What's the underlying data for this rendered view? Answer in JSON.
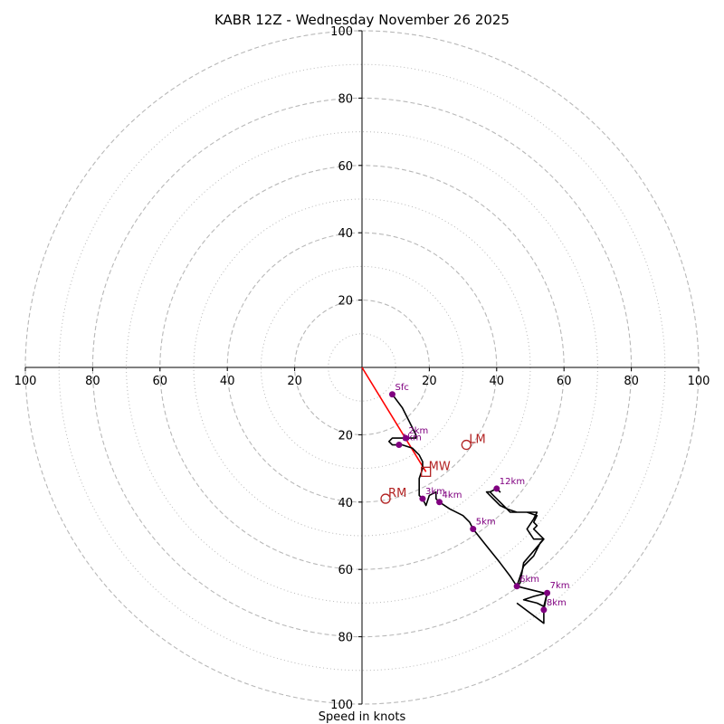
{
  "chart_data": {
    "type": "hodograph",
    "title": "KABR 12Z - Wednesday November 26 2025",
    "xlabel": "Speed in knots",
    "range": [
      -100,
      100
    ],
    "ring_major": [
      20,
      40,
      60,
      80,
      100
    ],
    "ring_minor": [
      10,
      30,
      50,
      70,
      90
    ],
    "x_ticks": [
      {
        "value": -100,
        "label": "100"
      },
      {
        "value": -80,
        "label": "80"
      },
      {
        "value": -60,
        "label": "60"
      },
      {
        "value": -40,
        "label": "40"
      },
      {
        "value": -20,
        "label": "20"
      },
      {
        "value": 20,
        "label": "20"
      },
      {
        "value": 40,
        "label": "40"
      },
      {
        "value": 60,
        "label": "60"
      },
      {
        "value": 80,
        "label": "80"
      },
      {
        "value": 100,
        "label": "100"
      }
    ],
    "y_ticks": [
      {
        "value": 100,
        "label": "100"
      },
      {
        "value": 80,
        "label": "80"
      },
      {
        "value": 60,
        "label": "60"
      },
      {
        "value": 40,
        "label": "40"
      },
      {
        "value": 20,
        "label": "20"
      },
      {
        "value": -20,
        "label": "20"
      },
      {
        "value": -40,
        "label": "40"
      },
      {
        "value": -60,
        "label": "60"
      },
      {
        "value": -80,
        "label": "80"
      },
      {
        "value": -100,
        "label": "100"
      }
    ],
    "trace": [
      [
        9,
        -8
      ],
      [
        12,
        -12
      ],
      [
        14,
        -16
      ],
      [
        16,
        -20
      ],
      [
        16,
        -21
      ],
      [
        13,
        -21
      ],
      [
        9,
        -21
      ],
      [
        8,
        -22
      ],
      [
        9,
        -23
      ],
      [
        12,
        -23
      ],
      [
        15,
        -24
      ],
      [
        17,
        -26
      ],
      [
        18,
        -28
      ],
      [
        18,
        -30
      ],
      [
        17,
        -33
      ],
      [
        17,
        -36
      ],
      [
        17,
        -38
      ],
      [
        18,
        -39
      ],
      [
        19,
        -41
      ],
      [
        20,
        -38
      ],
      [
        22,
        -37
      ],
      [
        22,
        -39
      ],
      [
        23,
        -40
      ],
      [
        26,
        -42
      ],
      [
        30,
        -44
      ],
      [
        32,
        -46
      ],
      [
        33,
        -48
      ],
      [
        37,
        -53
      ],
      [
        41,
        -58
      ],
      [
        44,
        -62
      ],
      [
        46,
        -65
      ],
      [
        48,
        -59
      ],
      [
        51,
        -56
      ],
      [
        53,
        -52
      ],
      [
        54,
        -51
      ],
      [
        51,
        -48
      ],
      [
        52,
        -47
      ],
      [
        51,
        -46
      ],
      [
        52,
        -44
      ],
      [
        49,
        -43
      ],
      [
        44,
        -43
      ],
      [
        43,
        -42
      ],
      [
        41,
        -41
      ],
      [
        38,
        -38
      ],
      [
        37,
        -37
      ],
      [
        38,
        -37
      ],
      [
        40,
        -36
      ],
      [
        41,
        -37
      ],
      [
        40,
        -36
      ],
      [
        38,
        -37
      ],
      [
        39,
        -38
      ],
      [
        43,
        -42
      ],
      [
        46,
        -43
      ],
      [
        52,
        -43
      ],
      [
        51,
        -45
      ],
      [
        49,
        -48
      ],
      [
        51,
        -51
      ],
      [
        54,
        -51
      ],
      [
        48,
        -58
      ],
      [
        47,
        -64
      ],
      [
        46,
        -65
      ],
      [
        54,
        -67
      ],
      [
        55,
        -67
      ],
      [
        51,
        -68
      ],
      [
        48,
        -69
      ],
      [
        52,
        -70
      ],
      [
        54,
        -71
      ],
      [
        55,
        -67
      ],
      [
        54,
        -72
      ],
      [
        54,
        -76
      ],
      [
        46,
        -70
      ]
    ],
    "height_markers": [
      {
        "label": "Sfc",
        "x": 9,
        "y": -8
      },
      {
        "label": "1km",
        "x": 11,
        "y": -23
      },
      {
        "label": "2km",
        "x": 13,
        "y": -21
      },
      {
        "label": "3km",
        "x": 18,
        "y": -39
      },
      {
        "label": "4km",
        "x": 23,
        "y": -40
      },
      {
        "label": "5km",
        "x": 33,
        "y": -48
      },
      {
        "label": "6km",
        "x": 46,
        "y": -65
      },
      {
        "label": "7km",
        "x": 55,
        "y": -67
      },
      {
        "label": "8km",
        "x": 54,
        "y": -72
      },
      {
        "label": "12km",
        "x": 40,
        "y": -36
      }
    ],
    "mean_wind_vector": {
      "x": 19,
      "y": -31
    },
    "storm_motion": [
      {
        "label": "LM",
        "x": 31,
        "y": -23,
        "marker": "circle"
      },
      {
        "label": "RM",
        "x": 7,
        "y": -39,
        "marker": "circle"
      },
      {
        "label": "MW",
        "x": 19,
        "y": -31,
        "marker": "square"
      }
    ],
    "colors": {
      "trace": "#000000",
      "markers": "#800080",
      "vector": "#ff0000",
      "storm_motion": "#b22222",
      "grid": "#b8b8b8",
      "axis": "#000000"
    }
  }
}
